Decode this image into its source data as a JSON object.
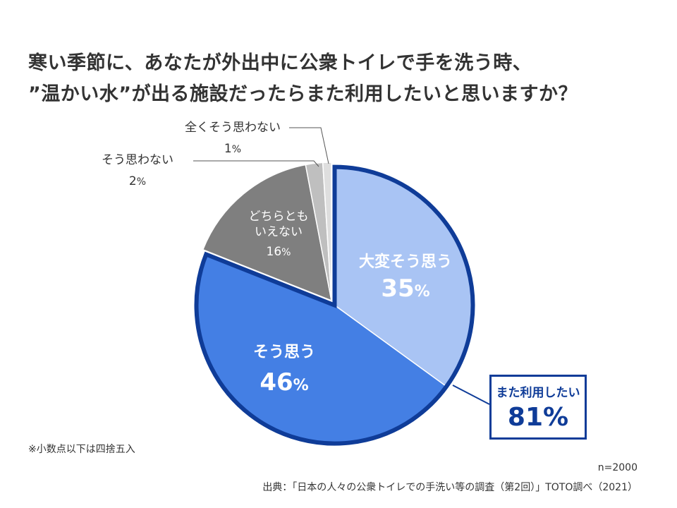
{
  "title": {
    "line1": "寒い季節に、あなたが外出中に公衆トイレで手を洗う時、",
    "line2": "”温かい水”が出る施設だったらまた利用したいと思いますか？"
  },
  "chart_data": {
    "type": "pie",
    "slices": [
      {
        "label": "大変そう思う",
        "label_lines": [
          "大変そう思う"
        ],
        "value": 35,
        "display": "35%",
        "color": "#a9c4f4",
        "label_style": "inside"
      },
      {
        "label": "そう思う",
        "label_lines": [
          "そう思う"
        ],
        "value": 46,
        "display": "46%",
        "color": "#447fe4",
        "label_style": "inside"
      },
      {
        "label": "どちらともいえない",
        "label_lines": [
          "どちらとも",
          "いえない"
        ],
        "value": 16,
        "display": "16%",
        "color": "#7f7f7f",
        "label_style": "inside-small"
      },
      {
        "label": "そう思わない",
        "label_lines": [
          "そう思わない"
        ],
        "value": 2,
        "display": "2%",
        "color": "#bfbfbf",
        "label_style": "outside"
      },
      {
        "label": "全くそう思わない",
        "label_lines": [
          "全くそう思わない"
        ],
        "value": 1,
        "display": "1%",
        "color": "#dedede",
        "label_style": "outside"
      }
    ],
    "group_highlight": {
      "label": "また利用したい",
      "value": 81,
      "display": "81%",
      "members": [
        "大変そう思う",
        "そう思う"
      ],
      "border_color": "#0f3c98"
    }
  },
  "footer": {
    "note": "※小数点以下は四捨五入",
    "n": "n=2000",
    "source": "出典：「日本の人々の公衆トイレでの手洗い等の調査（第2回）」TOTO調べ（2021）"
  }
}
